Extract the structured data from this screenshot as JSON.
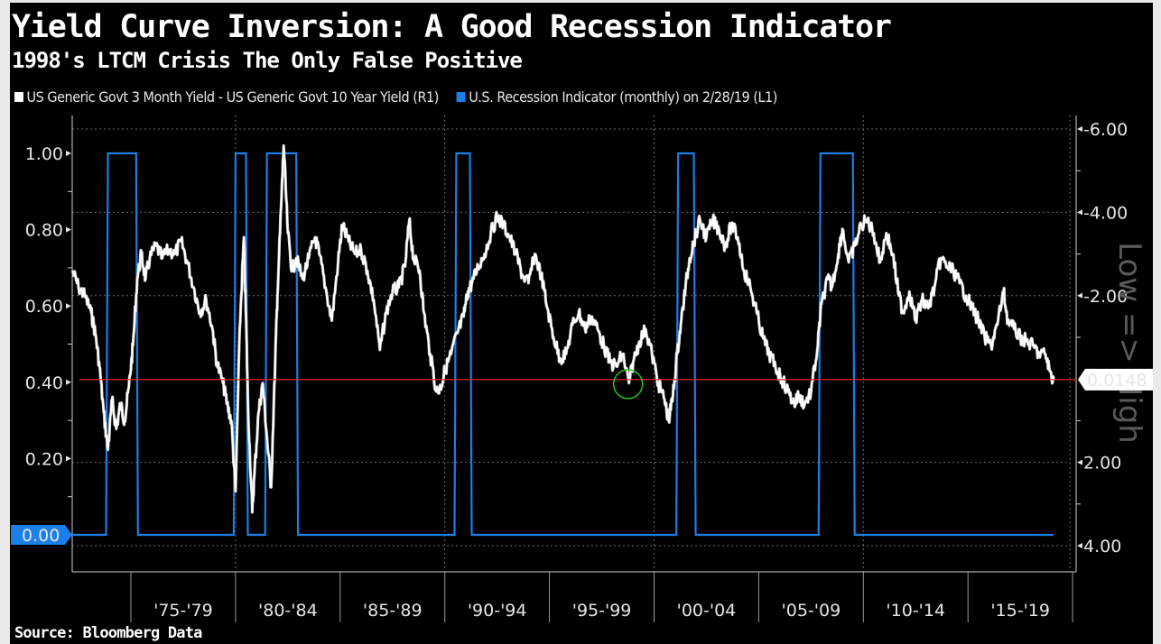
{
  "header": {
    "title": "Yield Curve Inversion: A Good Recession Indicator",
    "subtitle": "1998's LTCM Crisis The Only False Positive"
  },
  "legend": [
    {
      "label": "US Generic Govt 3 Month Yield - US Generic Govt 10 Year Yield (R1)",
      "color": "#ffffff"
    },
    {
      "label": "U.S. Recession Indicator (monthly)  on 2/28/19 (L1)",
      "color": "#1a7fe8"
    }
  ],
  "footer": {
    "source": "Source: Bloomberg Data"
  },
  "chart_data": {
    "type": "line",
    "title": "Yield Curve Inversion: A Good Recession Indicator",
    "subtitle": "1998's LTCM Crisis The Only False Positive",
    "xlabel": "",
    "x_range": [
      1972.2,
      2019.6
    ],
    "x_ticks": [
      "'75-'79",
      "'80-'84",
      "'85-'89",
      "'90-'94",
      "'95-'99",
      "'00-'04",
      "'05-'09",
      "'10-'14",
      "'15-'19"
    ],
    "x_tick_starts": [
      1975,
      1980,
      1985,
      1990,
      1995,
      2000,
      2005,
      2010,
      2015,
      2020
    ],
    "y_left": {
      "label": "L1",
      "ticks": [
        "1.00",
        "0.80",
        "0.60",
        "0.40",
        "0.20",
        "0.00"
      ],
      "tick_values": [
        1.0,
        0.8,
        0.6,
        0.4,
        0.2,
        0.0
      ],
      "range": [
        -0.08,
        1.1
      ],
      "current_value_label": "0.00"
    },
    "y_right": {
      "label": "Low => High",
      "inverted": true,
      "ticks": [
        "-6.00",
        "-4.00",
        "-2.00",
        "2.00",
        "4.00"
      ],
      "tick_values": [
        -6,
        -4,
        -2,
        2,
        4
      ],
      "range": [
        -6,
        4
      ],
      "current_value_label": "0.0148",
      "current_value": 0.0148
    },
    "grid": true,
    "legend_position": "top-left",
    "reference_line": {
      "axis": "right",
      "value": 0.0148,
      "color": "#e8251f"
    },
    "annotation": {
      "type": "circle",
      "x": 1998.8,
      "value_right": 0.0148,
      "color": "#22c122",
      "note": "1998 LTCM false positive"
    },
    "series": [
      {
        "name": "US Generic Govt 3 Month Yield - US Generic Govt 10 Year Yield (R1)",
        "axis": "right",
        "color": "#ffffff",
        "points": [
          [
            1972.2,
            -2.6
          ],
          [
            1972.5,
            -2.2
          ],
          [
            1972.8,
            -2.0
          ],
          [
            1973.1,
            -1.6
          ],
          [
            1973.3,
            -1.1
          ],
          [
            1973.5,
            -0.3
          ],
          [
            1973.7,
            0.8
          ],
          [
            1973.9,
            1.7
          ],
          [
            1974.1,
            0.5
          ],
          [
            1974.3,
            1.2
          ],
          [
            1974.5,
            0.6
          ],
          [
            1974.7,
            1.0
          ],
          [
            1974.9,
            0.2
          ],
          [
            1975.1,
            -0.8
          ],
          [
            1975.3,
            -2.4
          ],
          [
            1975.5,
            -3.0
          ],
          [
            1975.7,
            -2.4
          ],
          [
            1975.9,
            -2.9
          ],
          [
            1976.2,
            -3.2
          ],
          [
            1976.5,
            -2.9
          ],
          [
            1976.8,
            -3.1
          ],
          [
            1977.1,
            -3.0
          ],
          [
            1977.4,
            -3.3
          ],
          [
            1977.7,
            -2.8
          ],
          [
            1978.0,
            -2.2
          ],
          [
            1978.3,
            -1.6
          ],
          [
            1978.6,
            -1.9
          ],
          [
            1978.9,
            -1.2
          ],
          [
            1979.1,
            -0.4
          ],
          [
            1979.4,
            0.1
          ],
          [
            1979.6,
            0.6
          ],
          [
            1979.8,
            1.0
          ],
          [
            1980.0,
            2.7
          ],
          [
            1980.2,
            -1.2
          ],
          [
            1980.4,
            -3.4
          ],
          [
            1980.5,
            -1.5
          ],
          [
            1980.6,
            0.7
          ],
          [
            1980.8,
            3.2
          ],
          [
            1980.9,
            2.3
          ],
          [
            1981.1,
            0.8
          ],
          [
            1981.3,
            0.1
          ],
          [
            1981.5,
            1.4
          ],
          [
            1981.7,
            2.6
          ],
          [
            1981.9,
            -0.5
          ],
          [
            1982.0,
            -2.0
          ],
          [
            1982.2,
            -4.4
          ],
          [
            1982.3,
            -5.6
          ],
          [
            1982.5,
            -3.5
          ],
          [
            1982.7,
            -2.6
          ],
          [
            1982.9,
            -2.9
          ],
          [
            1983.2,
            -2.4
          ],
          [
            1983.5,
            -2.9
          ],
          [
            1983.8,
            -3.4
          ],
          [
            1984.0,
            -3.0
          ],
          [
            1984.3,
            -2.2
          ],
          [
            1984.6,
            -1.4
          ],
          [
            1984.9,
            -2.8
          ],
          [
            1985.1,
            -3.7
          ],
          [
            1985.4,
            -3.3
          ],
          [
            1985.7,
            -3.0
          ],
          [
            1986.0,
            -3.1
          ],
          [
            1986.3,
            -2.6
          ],
          [
            1986.6,
            -1.9
          ],
          [
            1986.9,
            -0.7
          ],
          [
            1987.2,
            -1.6
          ],
          [
            1987.5,
            -2.1
          ],
          [
            1987.8,
            -2.2
          ],
          [
            1988.1,
            -2.7
          ],
          [
            1988.3,
            -3.8
          ],
          [
            1988.5,
            -2.9
          ],
          [
            1988.8,
            -2.6
          ],
          [
            1989.0,
            -1.6
          ],
          [
            1989.3,
            -0.6
          ],
          [
            1989.6,
            0.3
          ],
          [
            1989.8,
            0.2
          ],
          [
            1990.0,
            -0.2
          ],
          [
            1990.3,
            -0.6
          ],
          [
            1990.6,
            -1.1
          ],
          [
            1990.9,
            -1.5
          ],
          [
            1991.1,
            -2.1
          ],
          [
            1991.3,
            -2.3
          ],
          [
            1991.6,
            -2.7
          ],
          [
            1991.9,
            -3.0
          ],
          [
            1992.2,
            -3.5
          ],
          [
            1992.5,
            -3.9
          ],
          [
            1992.8,
            -3.7
          ],
          [
            1993.1,
            -3.4
          ],
          [
            1993.4,
            -3.0
          ],
          [
            1993.7,
            -2.5
          ],
          [
            1994.0,
            -2.3
          ],
          [
            1994.3,
            -3.0
          ],
          [
            1994.6,
            -2.5
          ],
          [
            1994.9,
            -1.7
          ],
          [
            1995.2,
            -1.0
          ],
          [
            1995.5,
            -0.5
          ],
          [
            1995.8,
            -0.6
          ],
          [
            1996.1,
            -1.3
          ],
          [
            1996.4,
            -1.6
          ],
          [
            1996.7,
            -1.2
          ],
          [
            1997.0,
            -1.5
          ],
          [
            1997.3,
            -1.2
          ],
          [
            1997.6,
            -0.8
          ],
          [
            1997.9,
            -0.4
          ],
          [
            1998.2,
            -0.3
          ],
          [
            1998.5,
            -0.6
          ],
          [
            1998.8,
            0.1
          ],
          [
            1999.0,
            -0.4
          ],
          [
            1999.3,
            -0.9
          ],
          [
            1999.6,
            -1.2
          ],
          [
            1999.9,
            -0.6
          ],
          [
            2000.2,
            0.1
          ],
          [
            2000.5,
            0.5
          ],
          [
            2000.7,
            1.0
          ],
          [
            2000.9,
            0.4
          ],
          [
            2001.1,
            -0.6
          ],
          [
            2001.3,
            -1.4
          ],
          [
            2001.5,
            -2.2
          ],
          [
            2001.7,
            -2.9
          ],
          [
            2001.9,
            -3.3
          ],
          [
            2002.2,
            -3.8
          ],
          [
            2002.5,
            -3.4
          ],
          [
            2002.8,
            -3.8
          ],
          [
            2003.1,
            -3.6
          ],
          [
            2003.4,
            -3.2
          ],
          [
            2003.7,
            -3.7
          ],
          [
            2004.0,
            -3.4
          ],
          [
            2004.3,
            -2.6
          ],
          [
            2004.6,
            -2.2
          ],
          [
            2004.9,
            -1.6
          ],
          [
            2005.2,
            -1.0
          ],
          [
            2005.5,
            -0.6
          ],
          [
            2005.8,
            -0.3
          ],
          [
            2006.1,
            0.0
          ],
          [
            2006.4,
            0.3
          ],
          [
            2006.7,
            0.6
          ],
          [
            2006.9,
            0.4
          ],
          [
            2007.2,
            0.6
          ],
          [
            2007.5,
            0.3
          ],
          [
            2007.8,
            -0.7
          ],
          [
            2008.0,
            -1.8
          ],
          [
            2008.3,
            -2.4
          ],
          [
            2008.5,
            -2.2
          ],
          [
            2008.8,
            -3.0
          ],
          [
            2009.0,
            -3.6
          ],
          [
            2009.3,
            -2.8
          ],
          [
            2009.6,
            -3.2
          ],
          [
            2009.9,
            -3.7
          ],
          [
            2010.2,
            -3.8
          ],
          [
            2010.5,
            -3.5
          ],
          [
            2010.8,
            -2.8
          ],
          [
            2011.1,
            -3.5
          ],
          [
            2011.4,
            -3.0
          ],
          [
            2011.7,
            -2.0
          ],
          [
            2011.9,
            -1.6
          ],
          [
            2012.2,
            -2.1
          ],
          [
            2012.5,
            -1.4
          ],
          [
            2012.8,
            -1.9
          ],
          [
            2013.1,
            -1.7
          ],
          [
            2013.4,
            -2.2
          ],
          [
            2013.7,
            -2.9
          ],
          [
            2014.0,
            -2.7
          ],
          [
            2014.3,
            -2.6
          ],
          [
            2014.6,
            -2.3
          ],
          [
            2014.9,
            -2.0
          ],
          [
            2015.2,
            -1.7
          ],
          [
            2015.5,
            -1.4
          ],
          [
            2015.8,
            -1.0
          ],
          [
            2016.1,
            -0.8
          ],
          [
            2016.4,
            -1.3
          ],
          [
            2016.7,
            -2.1
          ],
          [
            2016.9,
            -1.4
          ],
          [
            2017.2,
            -1.2
          ],
          [
            2017.5,
            -1.0
          ],
          [
            2017.8,
            -0.9
          ],
          [
            2018.1,
            -0.8
          ],
          [
            2018.4,
            -0.6
          ],
          [
            2018.7,
            -0.6
          ],
          [
            2018.9,
            -0.2
          ],
          [
            2019.1,
            0.0148
          ]
        ]
      },
      {
        "name": "U.S. Recession Indicator (monthly)  on 2/28/19 (L1)",
        "axis": "left",
        "color": "#1a7fe8",
        "recession_periods": [
          [
            1973.9,
            1975.25
          ],
          [
            1980.0,
            1980.5
          ],
          [
            1981.5,
            1982.9
          ],
          [
            1990.55,
            1991.2
          ],
          [
            2001.15,
            2001.9
          ],
          [
            2007.95,
            2009.5
          ]
        ],
        "values_range": [
          0,
          1
        ],
        "current_value": 0
      }
    ]
  }
}
